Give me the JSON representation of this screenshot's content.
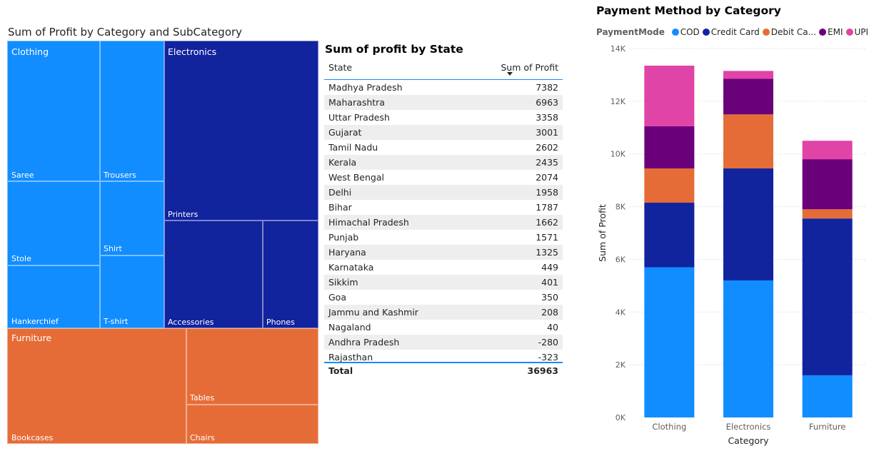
{
  "treemap": {
    "title": "Sum of Profit by Category and SubCategory",
    "categories": [
      {
        "name": "Clothing",
        "color": "#118DFF",
        "subcategories": [
          "Saree",
          "Trousers",
          "Stole",
          "Shirt",
          "Hankerchief",
          "T-shirt"
        ]
      },
      {
        "name": "Electronics",
        "color": "#12239E",
        "subcategories": [
          "Printers",
          "Accessories",
          "Phones"
        ]
      },
      {
        "name": "Furniture",
        "color": "#E66C37",
        "subcategories": [
          "Bookcases",
          "Tables",
          "Chairs"
        ]
      }
    ]
  },
  "state_table": {
    "title": "Sum of profit by State",
    "col_state": "State",
    "col_profit": "Sum of Profit",
    "rows": [
      {
        "state": "Madhya Pradesh",
        "profit": "7382"
      },
      {
        "state": "Maharashtra",
        "profit": "6963"
      },
      {
        "state": "Uttar Pradesh",
        "profit": "3358"
      },
      {
        "state": "Gujarat",
        "profit": "3001"
      },
      {
        "state": "Tamil Nadu",
        "profit": "2602"
      },
      {
        "state": "Kerala",
        "profit": "2435"
      },
      {
        "state": "West Bengal",
        "profit": "2074"
      },
      {
        "state": "Delhi",
        "profit": "1958"
      },
      {
        "state": "Bihar",
        "profit": "1787"
      },
      {
        "state": "Himachal Pradesh",
        "profit": "1662"
      },
      {
        "state": "Punjab",
        "profit": "1571"
      },
      {
        "state": "Haryana",
        "profit": "1325"
      },
      {
        "state": "Karnataka",
        "profit": "449"
      },
      {
        "state": "Sikkim",
        "profit": "401"
      },
      {
        "state": "Goa",
        "profit": "350"
      },
      {
        "state": "Jammu and Kashmir",
        "profit": "208"
      },
      {
        "state": "Nagaland",
        "profit": "40"
      },
      {
        "state": "Andhra Pradesh",
        "profit": "-280"
      },
      {
        "state": "Rajasthan",
        "profit": "-323"
      }
    ],
    "total_label": "Total",
    "total_value": "36963"
  },
  "chart_data": {
    "type": "bar",
    "stacked": true,
    "title": "Payment Method by Category",
    "legend_title": "PaymentMode",
    "legend_labels": [
      "COD",
      "Credit Card",
      "Debit Ca...",
      "EMI",
      "UPI"
    ],
    "categories": [
      "Clothing",
      "Electronics",
      "Furniture"
    ],
    "series": [
      {
        "name": "COD",
        "color": "#118DFF",
        "values": [
          5700,
          5200,
          1600
        ]
      },
      {
        "name": "Credit Card",
        "color": "#12239E",
        "values": [
          2450,
          4250,
          5950
        ]
      },
      {
        "name": "Debit Card",
        "color": "#E66C37",
        "values": [
          1300,
          2050,
          350
        ]
      },
      {
        "name": "EMI",
        "color": "#6B007B",
        "values": [
          1600,
          1350,
          1900
        ]
      },
      {
        "name": "UPI",
        "color": "#E044A7",
        "values": [
          2300,
          300,
          700
        ]
      }
    ],
    "xlabel": "Category",
    "ylabel": "Sum of Profit",
    "ylim": [
      0,
      14000
    ],
    "yticks": [
      0,
      2000,
      4000,
      6000,
      8000,
      10000,
      12000,
      14000
    ],
    "ytick_labels": [
      "0K",
      "2K",
      "4K",
      "6K",
      "8K",
      "10K",
      "12K",
      "14K"
    ],
    "grid": true,
    "legend_position": "top-left"
  }
}
